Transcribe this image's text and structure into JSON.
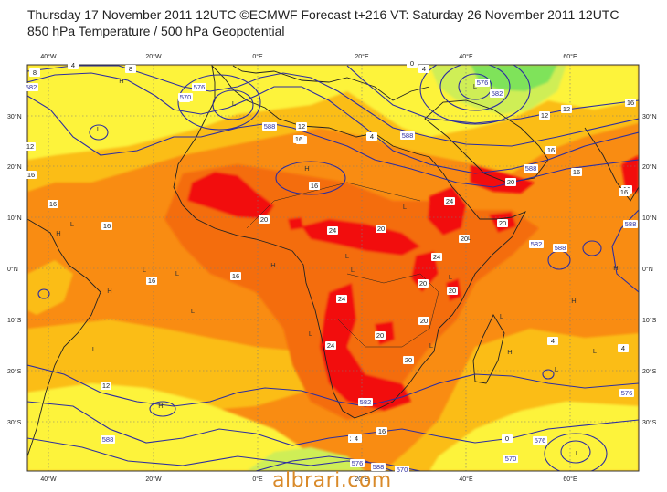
{
  "header": {
    "line1": "Thursday 17 November 2011 12UTC ©ECMWF Forecast t+216 VT: Saturday 26 November 2011 12UTC",
    "line2": "850 hPa Temperature / 500 hPa Geopotential"
  },
  "watermark": "albrari.com",
  "colors": {
    "cold_green": "#7fe35a",
    "cool_yellowgreen": "#cfee57",
    "yellow": "#fdf33b",
    "light_orange": "#fbbd14",
    "orange": "#f98c12",
    "dark_orange": "#f46d0e",
    "red": "#f21010",
    "contour_blue": "#2d2ea0",
    "coast": "#222222",
    "grid": "#7a7a7a"
  },
  "axes": {
    "lon_labels": [
      "40°W",
      "20°W",
      "0°E",
      "20°E",
      "40°E",
      "60°E"
    ],
    "lat_labels": [
      "30°N",
      "20°N",
      "10°N",
      "0°N",
      "10°S",
      "20°S",
      "30°S"
    ]
  },
  "contour_labels": {
    "temperature": [
      "8",
      "8",
      "8",
      "4",
      "0",
      "4",
      "4",
      "12",
      "12",
      "12",
      "12",
      "16",
      "16",
      "16",
      "16",
      "16",
      "16",
      "16",
      "16",
      "16",
      "20",
      "20",
      "20",
      "20",
      "20",
      "20",
      "20",
      "20",
      "24",
      "24",
      "24",
      "24",
      "24",
      "24",
      "20",
      "20",
      "16",
      "16",
      "12",
      "8",
      "4",
      "0",
      "4",
      "4",
      "16",
      "16",
      "16"
    ],
    "geopotential": [
      "582",
      "576",
      "570",
      "588",
      "588",
      "582",
      "576",
      "588",
      "582",
      "588",
      "588",
      "576",
      "570",
      "588",
      "582",
      "576",
      "588",
      "570",
      "576"
    ]
  },
  "pressure_marks": [
    "L",
    "L",
    "H",
    "H",
    "L",
    "H",
    "L",
    "L",
    "L",
    "H",
    "L",
    "L",
    "H",
    "L",
    "L",
    "H",
    "L",
    "L",
    "L",
    "H",
    "L",
    "L",
    "H",
    "H",
    "L",
    "L",
    "L",
    "L"
  ]
}
